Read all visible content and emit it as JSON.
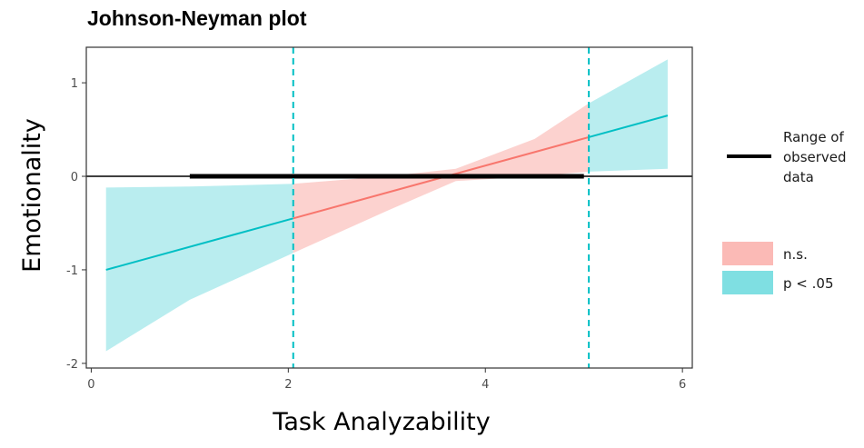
{
  "chart_data": {
    "type": "line",
    "title": "Johnson-Neyman plot",
    "xlabel": "Task Analyzability",
    "ylabel": "Emotionality",
    "xlim": [
      -0.05,
      6.1
    ],
    "ylim": [
      -2.05,
      1.38
    ],
    "x_ticks": [
      0,
      2,
      4,
      6
    ],
    "y_ticks": [
      -2,
      -1,
      0,
      1
    ],
    "grid": false,
    "legend_position": "right",
    "slope_line": {
      "x_start": 0.15,
      "x_end": 5.85,
      "y_start": -1.0,
      "y_end": 0.65
    },
    "confidence_band": {
      "x": [
        0.15,
        1.0,
        2.05,
        3.0,
        3.7,
        4.5,
        5.05,
        5.85
      ],
      "lower": [
        -1.87,
        -1.32,
        -0.82,
        -0.37,
        -0.05,
        0.0,
        0.05,
        0.08
      ],
      "upper": [
        -0.12,
        -0.11,
        -0.08,
        0.0,
        0.08,
        0.4,
        0.78,
        1.25
      ]
    },
    "jn_bounds": [
      2.05,
      5.05
    ],
    "observed_range": [
      1.0,
      5.0
    ],
    "zero_line": 0,
    "colors": {
      "significant": "#00BFC4",
      "significant_fill": "#7FDFE2",
      "not_significant": "#F8766D",
      "not_significant_fill": "#FBBAB6",
      "observed": "#000000"
    },
    "legend": {
      "observed_label_lines": [
        "Range of",
        "observed",
        "data"
      ],
      "ns_label": "n.s.",
      "sig_label": "p < .05"
    }
  }
}
